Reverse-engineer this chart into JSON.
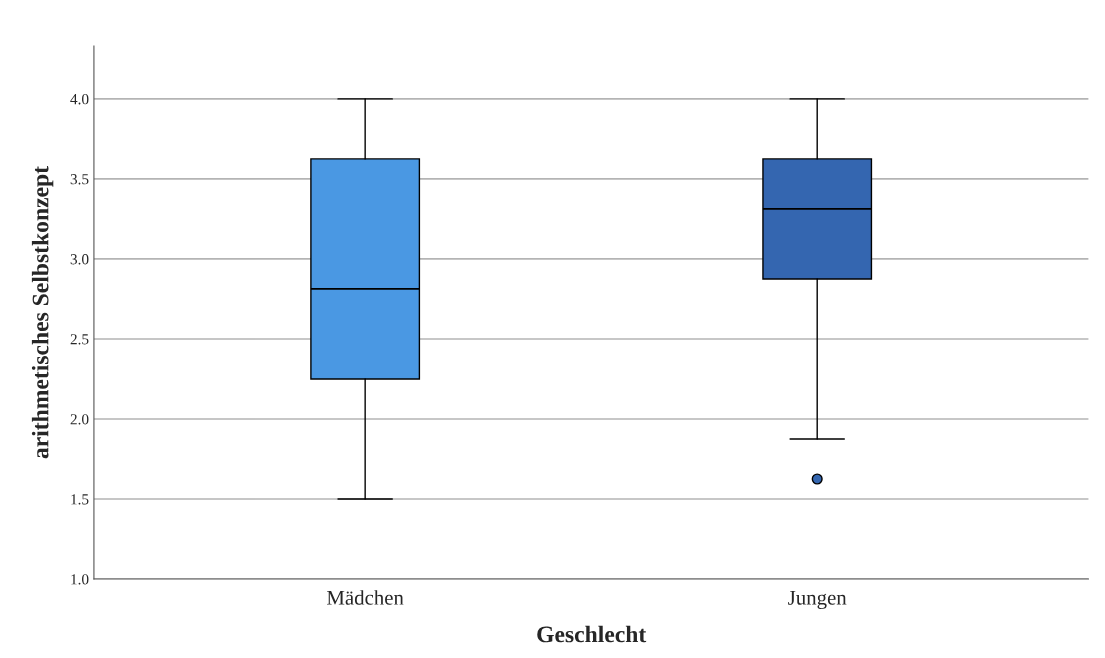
{
  "chart_data": {
    "type": "box",
    "xlabel": "Geschlecht",
    "ylabel": "arithmetisches Selbstkonzept",
    "categories": [
      "Mädchen",
      "Jungen"
    ],
    "colors": [
      "#4a98e3",
      "#3466b0"
    ],
    "boxes": [
      {
        "low": 1.5,
        "q1": 2.25,
        "median": 2.8125,
        "q3": 3.625,
        "high": 4.0
      },
      {
        "low": 1.875,
        "q1": 2.875,
        "median": 3.3125,
        "q3": 3.625,
        "high": 4.0,
        "outliers": [
          1.625
        ]
      }
    ],
    "ylim": [
      1.0,
      4.33
    ],
    "yticks": [
      {
        "value": 1.0,
        "label": "1.0"
      },
      {
        "value": 1.5,
        "label": "1.5"
      },
      {
        "value": 2.0,
        "label": "2.0"
      },
      {
        "value": 2.5,
        "label": "2.5"
      },
      {
        "value": 3.0,
        "label": "3.0"
      },
      {
        "value": 3.5,
        "label": "3.5"
      },
      {
        "value": 4.0,
        "label": "4.0"
      }
    ],
    "grid": "y"
  }
}
